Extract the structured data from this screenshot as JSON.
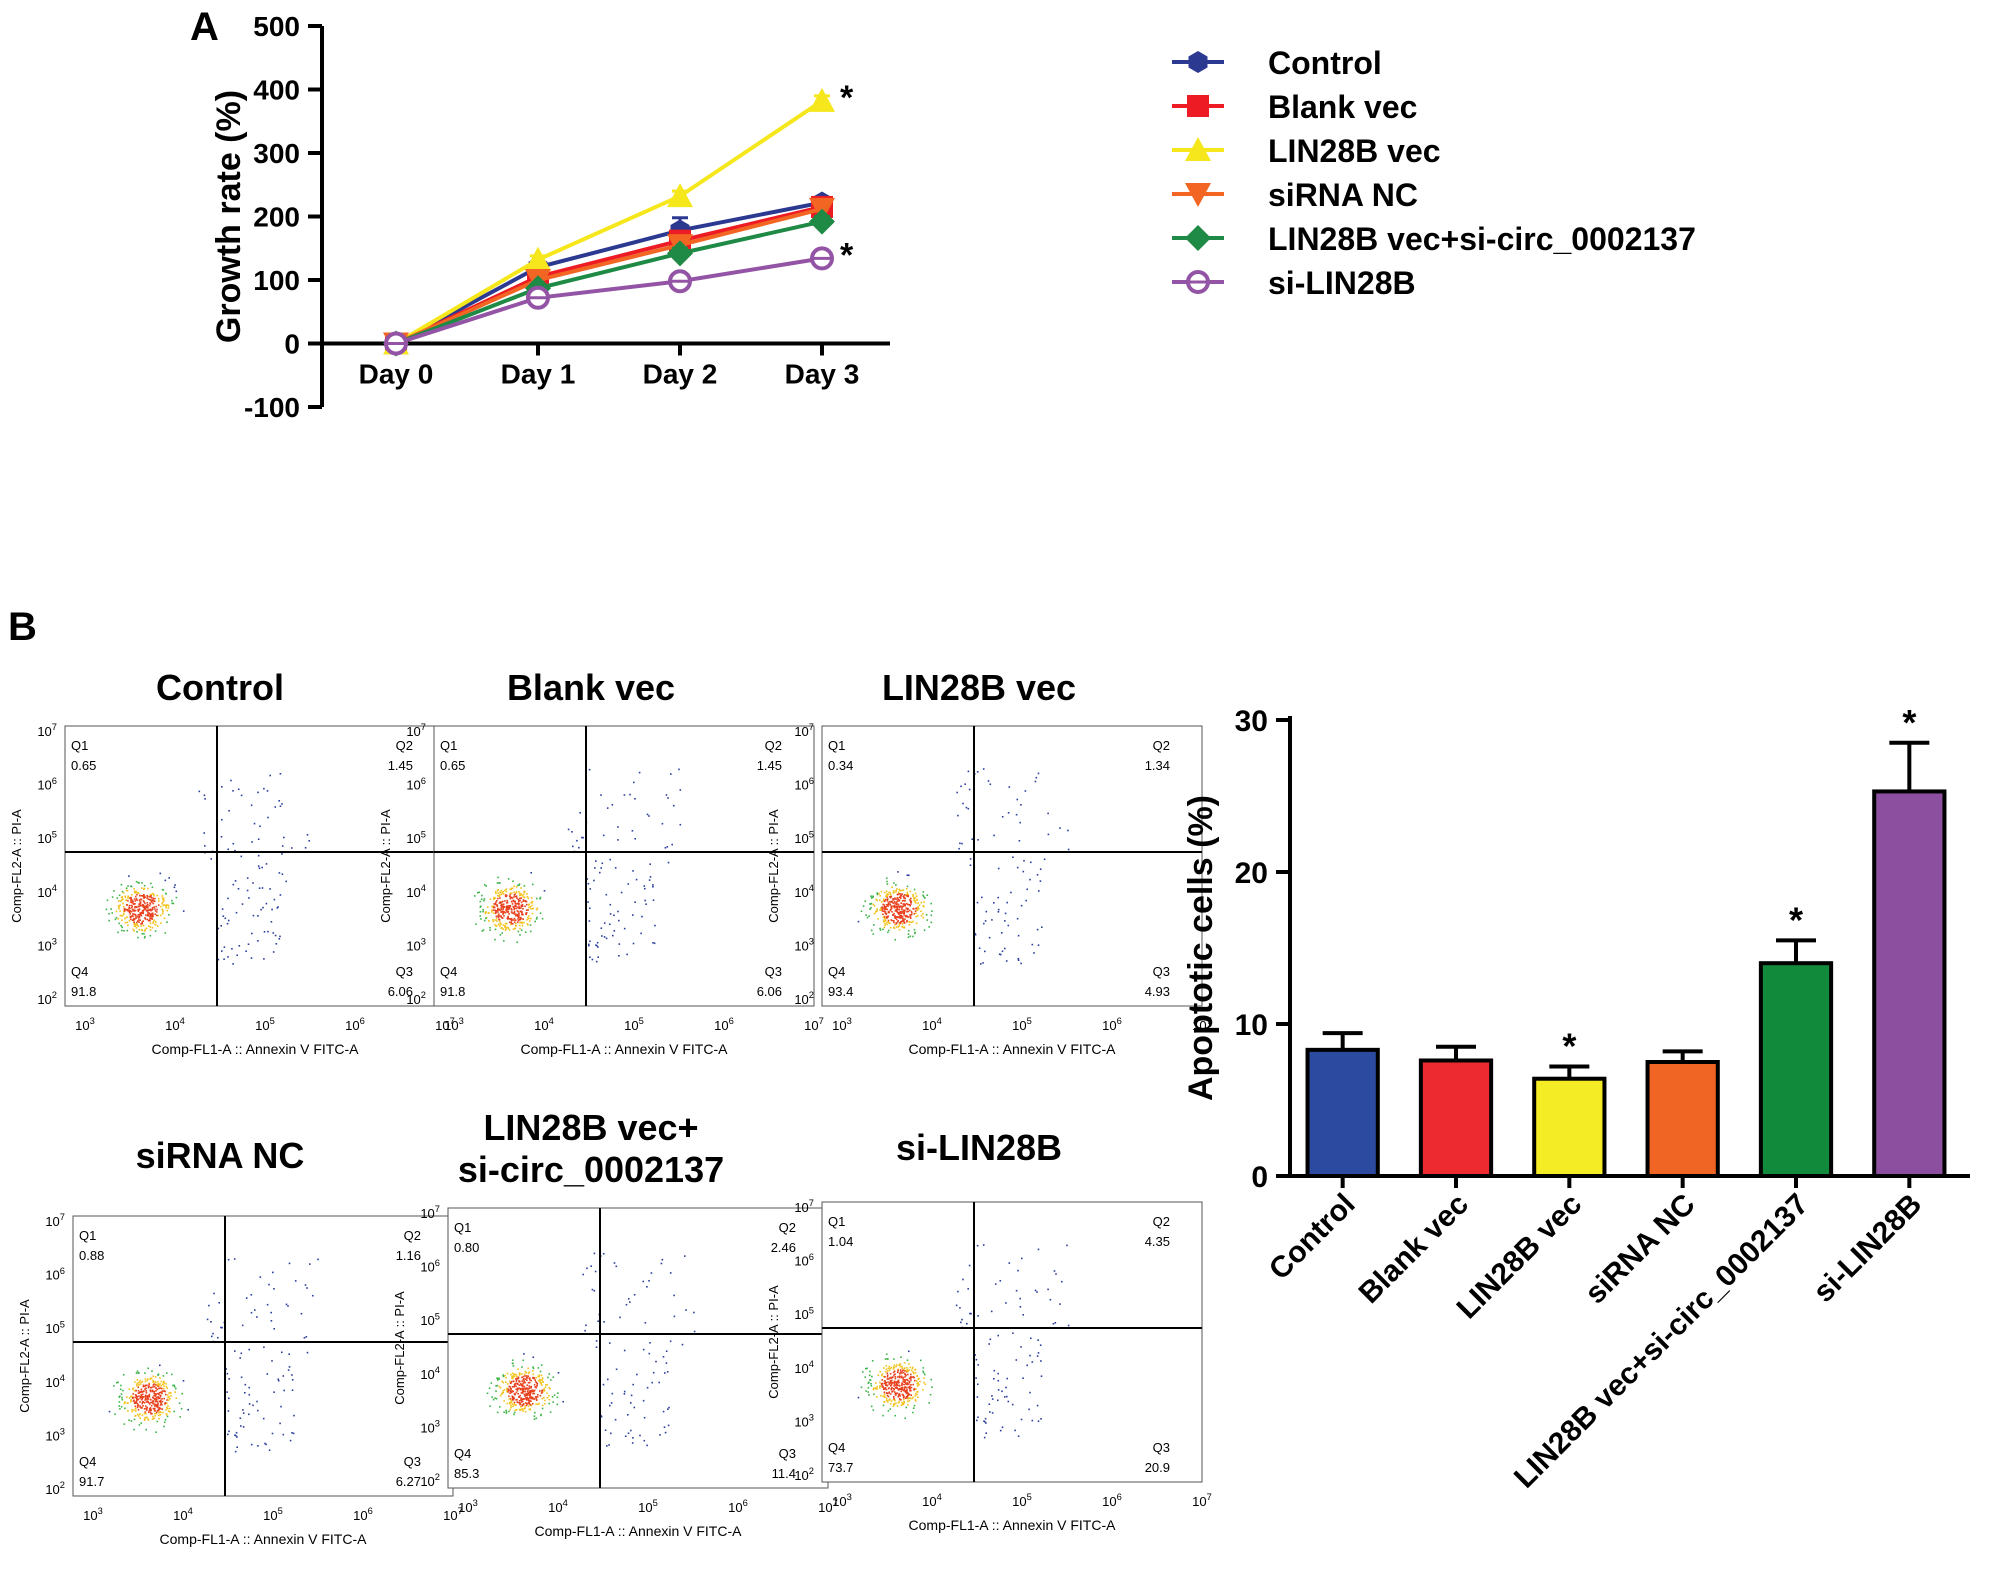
{
  "panel_labels": {
    "a": "A",
    "b": "B"
  },
  "colors": {
    "control": "#2b3990",
    "blank_vec": "#ed1c24",
    "lin28b_vec": "#f5e71c",
    "sirna_nc": "#f26522",
    "lin28b_si": "#1e8a45",
    "si_lin28b": "#9454a6"
  },
  "chart_data": [
    {
      "type": "line",
      "title": "",
      "xlabel": "",
      "ylabel": "Growth rate (%)",
      "categories": [
        "Day 0",
        "Day 1",
        "Day 2",
        "Day 3"
      ],
      "y_ticks": [
        "-100",
        "0",
        "100",
        "200",
        "300",
        "400",
        "500"
      ],
      "ylim": [
        -100,
        500
      ],
      "series": [
        {
          "name": "Control",
          "values": [
            0,
            120,
            178,
            222
          ],
          "errors": [
            3,
            8,
            20,
            8
          ],
          "marker": "hexagon",
          "color": "#2b3990"
        },
        {
          "name": "Blank vec",
          "values": [
            0,
            105,
            162,
            215
          ],
          "errors": [
            3,
            8,
            12,
            15
          ],
          "marker": "square",
          "color": "#ed1c24"
        },
        {
          "name": "LIN28B vec",
          "values": [
            0,
            132,
            232,
            382
          ],
          "errors": [
            3,
            6,
            8,
            8
          ],
          "marker": "triangle-up",
          "color": "#f5e71c"
        },
        {
          "name": "siRNA NC",
          "values": [
            0,
            100,
            155,
            212
          ],
          "errors": [
            3,
            6,
            10,
            10
          ],
          "marker": "triangle-down",
          "color": "#f26522"
        },
        {
          "name": "LIN28B vec+si-circ_0002137",
          "values": [
            0,
            87,
            142,
            192
          ],
          "errors": [
            3,
            6,
            8,
            8
          ],
          "marker": "diamond",
          "color": "#1e8a45"
        },
        {
          "name": "si-LIN28B",
          "values": [
            0,
            72,
            98,
            134
          ],
          "errors": [
            3,
            6,
            6,
            6
          ],
          "marker": "open-circle",
          "color": "#9454a6"
        }
      ],
      "annotations": [
        {
          "series": "LIN28B vec",
          "category": "Day 3",
          "text": "*"
        },
        {
          "series": "si-LIN28B",
          "category": "Day 3",
          "text": "*"
        }
      ]
    },
    {
      "type": "scatter",
      "subtype": "flow-cytometry",
      "xlabel": "Comp-FL1-A :: Annexin V FITC-A",
      "ylabel": "Comp-FL2-A :: PI-A",
      "x_ticks": [
        [
          "10",
          "3"
        ],
        [
          "10",
          "4"
        ],
        [
          "10",
          "5"
        ],
        [
          "10",
          "6"
        ],
        [
          "10",
          "7"
        ]
      ],
      "y_ticks": [
        [
          "10",
          "2"
        ],
        [
          "10",
          "3"
        ],
        [
          "10",
          "4"
        ],
        [
          "10",
          "5"
        ],
        [
          "10",
          "6"
        ],
        [
          "10",
          "7"
        ]
      ],
      "quadrant_labels": [
        "Q1",
        "Q2",
        "Q3",
        "Q4"
      ],
      "plots": [
        {
          "title": "Control",
          "q1": "0.65",
          "q2": "1.45",
          "q3": "6.06",
          "q4": "91.8"
        },
        {
          "title": "Blank vec",
          "q1": "0.65",
          "q2": "1.45",
          "q3": "6.06",
          "q4": "91.8"
        },
        {
          "title": "LIN28B vec",
          "q1": "0.34",
          "q2": "1.34",
          "q3": "4.93",
          "q4": "93.4"
        },
        {
          "title": "siRNA NC",
          "q1": "0.88",
          "q2": "1.16",
          "q3": "6.27",
          "q4": "91.7"
        },
        {
          "title": "LIN28B vec+\nsi-circ_0002137",
          "q1": "0.80",
          "q2": "2.46",
          "q3": "11.4",
          "q4": "85.3"
        },
        {
          "title": "si-LIN28B",
          "q1": "1.04",
          "q2": "4.35",
          "q3": "20.9",
          "q4": "73.7"
        }
      ]
    },
    {
      "type": "bar",
      "title": "",
      "xlabel": "",
      "ylabel": "Apoptotic cells (%)",
      "categories": [
        "Control",
        "Blank vec",
        "LIN28B vec",
        "siRNA NC",
        "LIN28B vec+si-circ_0002137",
        "si-LIN28B"
      ],
      "values": [
        8.3,
        7.6,
        6.4,
        7.5,
        14.0,
        25.3
      ],
      "errors": [
        1.1,
        0.9,
        0.8,
        0.7,
        1.5,
        3.2
      ],
      "colors": [
        "#2b4aa0",
        "#ec2a2f",
        "#f4ec24",
        "#f06424",
        "#118a3c",
        "#8c4fa0"
      ],
      "significant": [
        false,
        false,
        true,
        false,
        true,
        true
      ],
      "sig_mark": "*",
      "y_ticks": [
        "0",
        "10",
        "20",
        "30"
      ],
      "ylim": [
        0,
        30
      ]
    }
  ]
}
